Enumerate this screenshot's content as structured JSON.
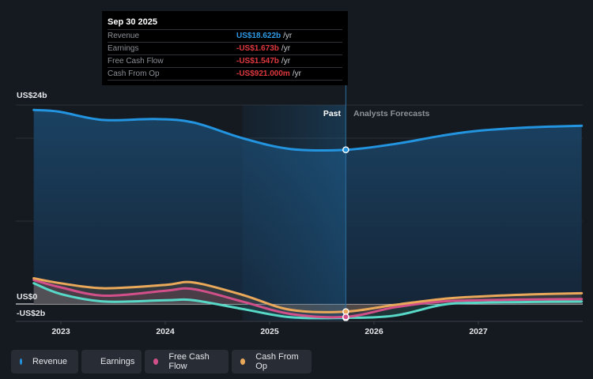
{
  "tooltip": {
    "date": "Sep 30 2025",
    "rows": [
      {
        "label": "Revenue",
        "value": "US$18.622b",
        "unit": "/yr",
        "color": "#2e9ae6"
      },
      {
        "label": "Earnings",
        "value": "-US$1.673b",
        "unit": "/yr",
        "color": "#e0383e"
      },
      {
        "label": "Free Cash Flow",
        "value": "-US$1.547b",
        "unit": "/yr",
        "color": "#e0383e"
      },
      {
        "label": "Cash From Op",
        "value": "-US$921.000m",
        "unit": "/yr",
        "color": "#e0383e"
      }
    ]
  },
  "legend": [
    {
      "label": "Revenue",
      "color": "#2394df"
    },
    {
      "label": "Earnings",
      "color": "#58d9c8"
    },
    {
      "label": "Free Cash Flow",
      "color": "#d2508a"
    },
    {
      "label": "Cash From Op",
      "color": "#eaa95a"
    }
  ],
  "chart_data": {
    "type": "line",
    "title": "",
    "xlabel": "",
    "ylabel": "",
    "unit": "US$ billions",
    "ylim": [
      -2,
      24
    ],
    "xlim": [
      2022.74,
      2027.99
    ],
    "y_tick_labels": [
      {
        "value": 24,
        "label": "US$24b"
      },
      {
        "value": 0,
        "label": "US$0"
      },
      {
        "value": -2,
        "label": "-US$2b"
      }
    ],
    "gridlines": [
      0,
      10,
      20,
      24
    ],
    "x_ticks": [
      {
        "value": 2023,
        "label": "2023"
      },
      {
        "value": 2024,
        "label": "2024"
      },
      {
        "value": 2025,
        "label": "2025"
      },
      {
        "value": 2026,
        "label": "2026"
      },
      {
        "value": 2027,
        "label": "2027"
      }
    ],
    "past_label": "Past",
    "forecast_label": "Analysts Forecasts",
    "divider_x": 2025.73,
    "highlight_start": 2024.74,
    "series": [
      {
        "name": "Revenue",
        "color": "#2394df",
        "x": [
          2022.74,
          2022.98,
          2023.4,
          2023.9,
          2024.27,
          2024.74,
          2025.2,
          2025.73,
          2026.2,
          2026.65,
          2027.0,
          2027.5,
          2027.99
        ],
        "y": [
          23.4,
          23.2,
          22.2,
          22.3,
          21.9,
          20.0,
          18.7,
          18.6,
          19.3,
          20.3,
          20.9,
          21.3,
          21.5
        ]
      },
      {
        "name": "Earnings",
        "color": "#58d9c8",
        "x": [
          2022.74,
          2023.0,
          2023.42,
          2024.0,
          2024.27,
          2024.74,
          2025.2,
          2025.73,
          2026.2,
          2026.65,
          2027.0,
          2027.5,
          2027.99
        ],
        "y": [
          2.5,
          1.2,
          0.3,
          0.45,
          0.45,
          -0.6,
          -1.6,
          -1.67,
          -1.4,
          -0.1,
          0.15,
          0.25,
          0.3
        ]
      },
      {
        "name": "Free Cash Flow",
        "color": "#d2508a",
        "x": [
          2022.74,
          2023.0,
          2023.42,
          2024.0,
          2024.27,
          2024.74,
          2025.2,
          2025.73,
          2026.2,
          2026.65,
          2027.0,
          2027.5,
          2027.99
        ],
        "y": [
          2.9,
          2.0,
          1.0,
          1.6,
          1.8,
          0.3,
          -1.2,
          -1.55,
          -0.4,
          0.3,
          0.45,
          0.55,
          0.6
        ]
      },
      {
        "name": "Cash From Op",
        "color": "#eaa95a",
        "x": [
          2022.74,
          2023.0,
          2023.42,
          2024.0,
          2024.27,
          2024.74,
          2025.2,
          2025.73,
          2026.2,
          2026.65,
          2027.0,
          2027.5,
          2027.99
        ],
        "y": [
          3.1,
          2.5,
          1.9,
          2.3,
          2.6,
          1.1,
          -0.7,
          -0.92,
          -0.1,
          0.6,
          0.9,
          1.15,
          1.3
        ]
      }
    ]
  }
}
